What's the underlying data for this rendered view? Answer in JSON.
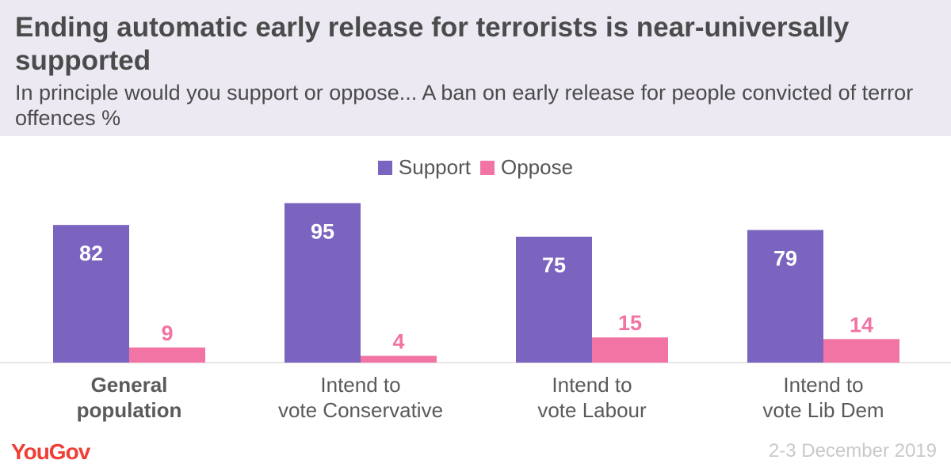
{
  "header": {
    "title": "Ending automatic early release for terrorists is near-universally supported",
    "subtitle": "In principle would you support or oppose... A ban on early release for people convicted of terror offences %"
  },
  "legend": [
    {
      "label": "Support",
      "color": "#7b64bf"
    },
    {
      "label": "Oppose",
      "color": "#f274a4"
    }
  ],
  "chart_data": {
    "type": "bar",
    "categories": [
      [
        "General",
        "population"
      ],
      [
        "Intend to",
        "vote Conservative"
      ],
      [
        "Intend to",
        "vote Labour"
      ],
      [
        "Intend to",
        "vote Lib Dem"
      ]
    ],
    "category_bold": [
      true,
      false,
      false,
      false
    ],
    "series": [
      {
        "name": "Support",
        "values": [
          82,
          95,
          75,
          79
        ],
        "color": "#7b64bf"
      },
      {
        "name": "Oppose",
        "values": [
          9,
          4,
          15,
          14
        ],
        "color": "#f274a4"
      }
    ],
    "ylim": [
      0,
      100
    ],
    "grid": false,
    "legend_position": "top"
  },
  "footer": {
    "brand": "YouGov",
    "date": "2-3 December 2019"
  }
}
